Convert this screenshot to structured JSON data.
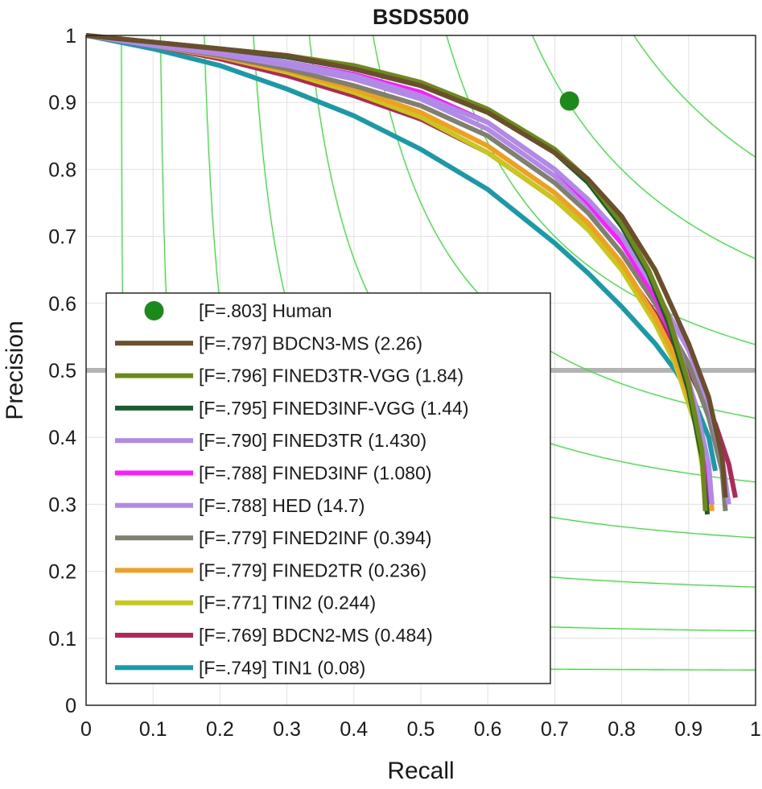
{
  "chart_data": {
    "type": "line",
    "title": "BSDS500",
    "xlabel": "Recall",
    "ylabel": "Precision",
    "xlim": [
      0,
      1
    ],
    "ylim": [
      0,
      1
    ],
    "grid": true,
    "xticks": [
      "0",
      "0.1",
      "0.2",
      "0.3",
      "0.4",
      "0.5",
      "0.6",
      "0.7",
      "0.8",
      "0.9",
      "1"
    ],
    "yticks": [
      "0",
      "0.1",
      "0.2",
      "0.3",
      "0.4",
      "0.5",
      "0.6",
      "0.7",
      "0.8",
      "0.9",
      "1"
    ],
    "reference_line": {
      "y": 0.5,
      "color": "#b3b3b3"
    },
    "iso_f_levels": [
      0.1,
      0.2,
      0.3,
      0.4,
      0.5,
      0.6,
      0.7,
      0.8,
      0.9
    ],
    "iso_f_color": "#33e633",
    "human": {
      "label": "[F=.803] Human",
      "recall": 0.722,
      "precision": 0.902,
      "color": "#1a8a1a"
    },
    "legend_position": "bottom-left",
    "series": [
      {
        "label": "[F=.797] BDCN3-MS (2.26)",
        "color": "#6b4f2a",
        "points": [
          [
            0.0,
            1.0
          ],
          [
            0.1,
            0.99
          ],
          [
            0.2,
            0.98
          ],
          [
            0.3,
            0.97
          ],
          [
            0.4,
            0.95
          ],
          [
            0.5,
            0.925
          ],
          [
            0.6,
            0.885
          ],
          [
            0.7,
            0.825
          ],
          [
            0.75,
            0.785
          ],
          [
            0.8,
            0.73
          ],
          [
            0.85,
            0.65
          ],
          [
            0.9,
            0.54
          ],
          [
            0.93,
            0.46
          ],
          [
            0.95,
            0.37
          ],
          [
            0.955,
            0.31
          ]
        ]
      },
      {
        "label": "[F=.796] FINED3TR-VGG (1.84)",
        "color": "#6b8a1a",
        "points": [
          [
            0.0,
            1.0
          ],
          [
            0.1,
            0.99
          ],
          [
            0.2,
            0.98
          ],
          [
            0.3,
            0.97
          ],
          [
            0.4,
            0.955
          ],
          [
            0.5,
            0.93
          ],
          [
            0.6,
            0.89
          ],
          [
            0.7,
            0.83
          ],
          [
            0.75,
            0.785
          ],
          [
            0.8,
            0.72
          ],
          [
            0.84,
            0.65
          ],
          [
            0.87,
            0.58
          ],
          [
            0.9,
            0.48
          ],
          [
            0.92,
            0.38
          ],
          [
            0.925,
            0.29
          ]
        ]
      },
      {
        "label": "[F=.795] FINED3INF-VGG (1.44)",
        "color": "#1a5c2e",
        "points": [
          [
            0.0,
            1.0
          ],
          [
            0.1,
            0.99
          ],
          [
            0.2,
            0.98
          ],
          [
            0.3,
            0.968
          ],
          [
            0.4,
            0.95
          ],
          [
            0.5,
            0.925
          ],
          [
            0.6,
            0.885
          ],
          [
            0.7,
            0.825
          ],
          [
            0.75,
            0.78
          ],
          [
            0.8,
            0.715
          ],
          [
            0.84,
            0.645
          ],
          [
            0.87,
            0.57
          ],
          [
            0.9,
            0.47
          ],
          [
            0.92,
            0.37
          ],
          [
            0.928,
            0.285
          ]
        ]
      },
      {
        "label": "[F=.790] FINED3TR (1.430)",
        "color": "#b08ae6",
        "points": [
          [
            0.0,
            1.0
          ],
          [
            0.1,
            0.985
          ],
          [
            0.2,
            0.975
          ],
          [
            0.3,
            0.96
          ],
          [
            0.4,
            0.94
          ],
          [
            0.5,
            0.91
          ],
          [
            0.6,
            0.87
          ],
          [
            0.7,
            0.8
          ],
          [
            0.75,
            0.755
          ],
          [
            0.8,
            0.7
          ],
          [
            0.85,
            0.62
          ],
          [
            0.88,
            0.55
          ],
          [
            0.91,
            0.45
          ],
          [
            0.93,
            0.36
          ],
          [
            0.935,
            0.3
          ]
        ]
      },
      {
        "label": "[F=.788] FINED3INF (1.080)",
        "color": "#ff1aff",
        "points": [
          [
            0.0,
            1.0
          ],
          [
            0.1,
            0.985
          ],
          [
            0.2,
            0.975
          ],
          [
            0.3,
            0.96
          ],
          [
            0.4,
            0.942
          ],
          [
            0.5,
            0.915
          ],
          [
            0.6,
            0.87
          ],
          [
            0.7,
            0.8
          ],
          [
            0.75,
            0.75
          ],
          [
            0.8,
            0.69
          ],
          [
            0.85,
            0.61
          ],
          [
            0.88,
            0.54
          ],
          [
            0.91,
            0.45
          ],
          [
            0.925,
            0.37
          ],
          [
            0.93,
            0.3
          ]
        ]
      },
      {
        "label": "[F=.788] HED (14.7)",
        "color": "#b08ae6",
        "points": [
          [
            0.0,
            1.0
          ],
          [
            0.1,
            0.985
          ],
          [
            0.2,
            0.972
          ],
          [
            0.3,
            0.955
          ],
          [
            0.4,
            0.935
          ],
          [
            0.5,
            0.905
          ],
          [
            0.6,
            0.86
          ],
          [
            0.7,
            0.79
          ],
          [
            0.75,
            0.745
          ],
          [
            0.8,
            0.69
          ],
          [
            0.85,
            0.62
          ],
          [
            0.9,
            0.53
          ],
          [
            0.93,
            0.45
          ],
          [
            0.95,
            0.37
          ],
          [
            0.96,
            0.3
          ]
        ]
      },
      {
        "label": "[F=.779] FINED2INF (0.394)",
        "color": "#808070",
        "points": [
          [
            0.0,
            1.0
          ],
          [
            0.1,
            0.985
          ],
          [
            0.2,
            0.97
          ],
          [
            0.3,
            0.95
          ],
          [
            0.4,
            0.925
          ],
          [
            0.5,
            0.895
          ],
          [
            0.6,
            0.85
          ],
          [
            0.7,
            0.78
          ],
          [
            0.75,
            0.735
          ],
          [
            0.8,
            0.675
          ],
          [
            0.85,
            0.6
          ],
          [
            0.9,
            0.51
          ],
          [
            0.93,
            0.43
          ],
          [
            0.95,
            0.35
          ],
          [
            0.955,
            0.29
          ]
        ]
      },
      {
        "label": "[F=.779] FINED2TR (0.236)",
        "color": "#f0a020",
        "points": [
          [
            0.0,
            1.0
          ],
          [
            0.1,
            0.985
          ],
          [
            0.2,
            0.968
          ],
          [
            0.3,
            0.948
          ],
          [
            0.4,
            0.92
          ],
          [
            0.5,
            0.885
          ],
          [
            0.6,
            0.835
          ],
          [
            0.7,
            0.765
          ],
          [
            0.75,
            0.72
          ],
          [
            0.8,
            0.66
          ],
          [
            0.85,
            0.58
          ],
          [
            0.88,
            0.52
          ],
          [
            0.91,
            0.43
          ],
          [
            0.93,
            0.35
          ],
          [
            0.935,
            0.29
          ]
        ]
      },
      {
        "label": "[F=.771] TIN2 (0.244)",
        "color": "#c8c81a",
        "points": [
          [
            0.0,
            1.0
          ],
          [
            0.1,
            0.985
          ],
          [
            0.2,
            0.968
          ],
          [
            0.3,
            0.945
          ],
          [
            0.4,
            0.915
          ],
          [
            0.5,
            0.878
          ],
          [
            0.6,
            0.825
          ],
          [
            0.7,
            0.755
          ],
          [
            0.75,
            0.71
          ],
          [
            0.8,
            0.65
          ],
          [
            0.85,
            0.57
          ],
          [
            0.88,
            0.51
          ],
          [
            0.91,
            0.42
          ],
          [
            0.92,
            0.36
          ],
          [
            0.925,
            0.3
          ]
        ]
      },
      {
        "label": "[F=.769] BDCN2-MS (0.484)",
        "color": "#b0285a",
        "points": [
          [
            0.0,
            1.0
          ],
          [
            0.1,
            0.985
          ],
          [
            0.2,
            0.965
          ],
          [
            0.3,
            0.94
          ],
          [
            0.4,
            0.91
          ],
          [
            0.5,
            0.875
          ],
          [
            0.6,
            0.825
          ],
          [
            0.7,
            0.755
          ],
          [
            0.75,
            0.71
          ],
          [
            0.8,
            0.655
          ],
          [
            0.85,
            0.585
          ],
          [
            0.9,
            0.5
          ],
          [
            0.94,
            0.42
          ],
          [
            0.96,
            0.36
          ],
          [
            0.97,
            0.31
          ]
        ]
      },
      {
        "label": "[F=.749] TIN1 (0.08)",
        "color": "#1a9aa8",
        "points": [
          [
            0.0,
            1.0
          ],
          [
            0.1,
            0.98
          ],
          [
            0.2,
            0.955
          ],
          [
            0.3,
            0.92
          ],
          [
            0.4,
            0.88
          ],
          [
            0.5,
            0.83
          ],
          [
            0.6,
            0.77
          ],
          [
            0.7,
            0.69
          ],
          [
            0.75,
            0.645
          ],
          [
            0.8,
            0.595
          ],
          [
            0.85,
            0.54
          ],
          [
            0.88,
            0.5
          ],
          [
            0.91,
            0.45
          ],
          [
            0.93,
            0.4
          ],
          [
            0.94,
            0.35
          ]
        ]
      }
    ]
  }
}
